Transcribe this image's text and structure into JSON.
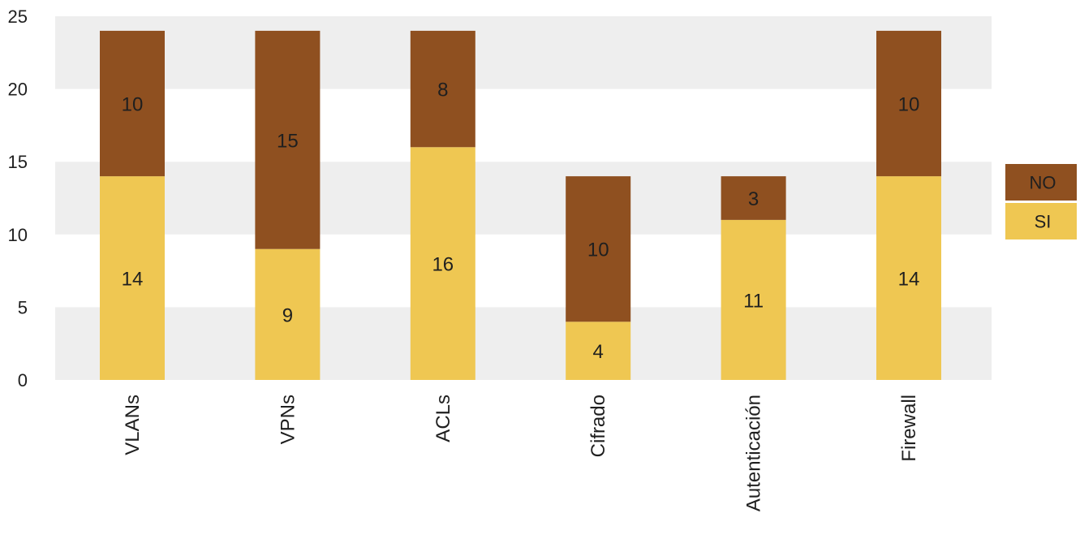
{
  "chart_data": {
    "type": "bar",
    "stacked": true,
    "categories": [
      "VLANs",
      "VPNs",
      "ACLs",
      "Cifrado",
      "Autenticación",
      "Firewall"
    ],
    "series": [
      {
        "name": "SI",
        "values": [
          14,
          9,
          16,
          4,
          11,
          14
        ],
        "color": "#EFC752"
      },
      {
        "name": "NO",
        "values": [
          10,
          15,
          8,
          10,
          3,
          10
        ],
        "color": "#8F5020"
      }
    ],
    "ylim": [
      0,
      25
    ],
    "yticks": [
      0,
      5,
      10,
      15,
      20,
      25
    ],
    "grid": "alternating horizontal bands",
    "band_color": "#EEEEEE",
    "legend_position": "right",
    "xlabel": "",
    "ylabel": "",
    "title": ""
  }
}
